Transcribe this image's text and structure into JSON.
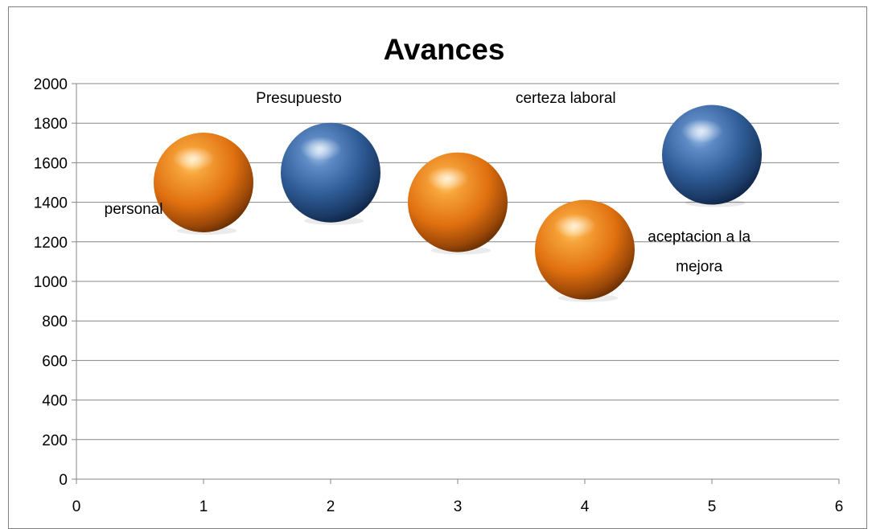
{
  "chart_data": {
    "type": "scatter",
    "title": "Avances",
    "xlabel": "",
    "ylabel": "",
    "xlim": [
      0,
      6
    ],
    "ylim": [
      0,
      2000
    ],
    "x_ticks": [
      "0",
      "1",
      "2",
      "3",
      "4",
      "5",
      "6"
    ],
    "y_ticks": [
      "0",
      "200",
      "400",
      "600",
      "800",
      "1000",
      "1200",
      "1400",
      "1600",
      "1800",
      "2000"
    ],
    "grid": true,
    "legend": "none",
    "points": [
      {
        "x": 1,
        "y": 1500,
        "color": "orange"
      },
      {
        "x": 2,
        "y": 1550,
        "color": "blue"
      },
      {
        "x": 3,
        "y": 1400,
        "color": "orange"
      },
      {
        "x": 4,
        "y": 1160,
        "color": "orange"
      },
      {
        "x": 5,
        "y": 1640,
        "color": "blue"
      }
    ],
    "annotations": [
      {
        "text": "personal",
        "x": 0.45,
        "y": 1370
      },
      {
        "text": "Presupuesto",
        "x": 1.75,
        "y": 1930
      },
      {
        "text": "certeza laboral",
        "x": 3.85,
        "y": 1930
      },
      {
        "text": "aceptacion a la",
        "x": 4.9,
        "y": 1230
      },
      {
        "text": "mejora",
        "x": 4.9,
        "y": 1080
      }
    ],
    "colors": {
      "orange": "#e8730f",
      "blue": "#2f5d96"
    }
  }
}
